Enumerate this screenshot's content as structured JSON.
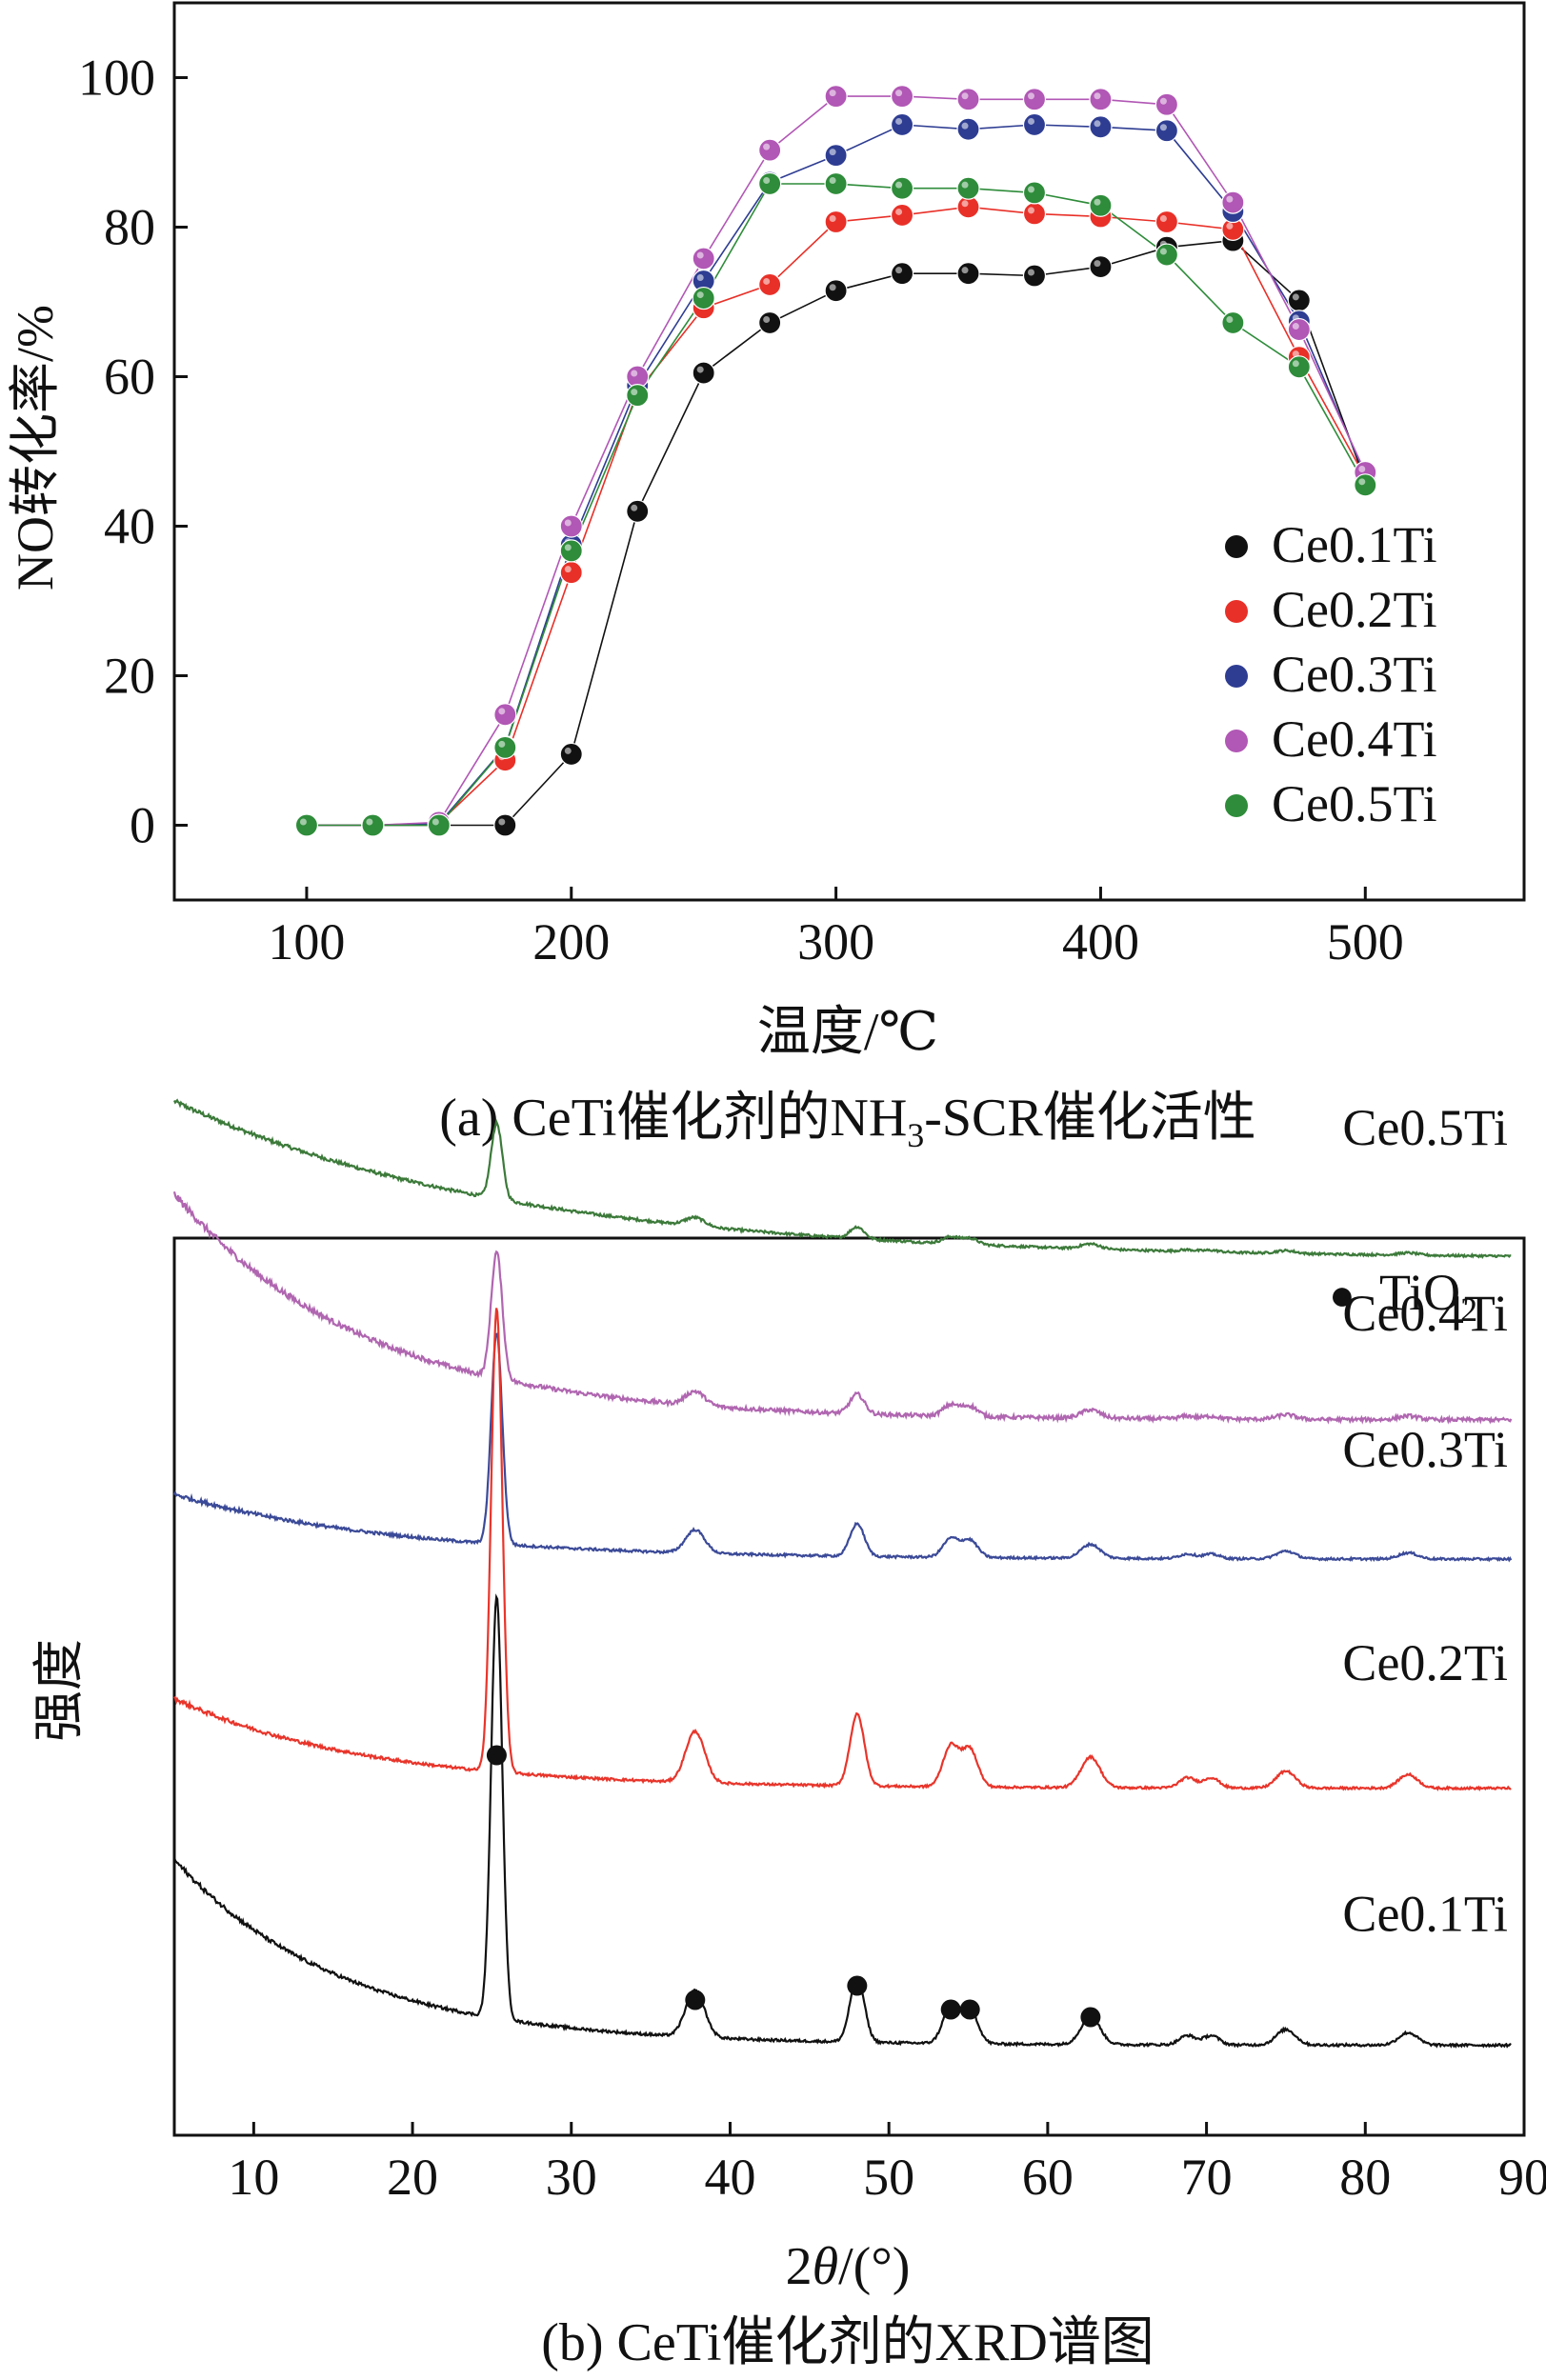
{
  "chart_data": [
    {
      "type": "scatter",
      "caption": "(a) CeTi催化剂的NH",
      "caption_sub": "3",
      "caption_tail": "-SCR催化活性",
      "xlabel": "温度/℃",
      "ylabel": "NO转化率/%",
      "xlim": [
        50,
        560
      ],
      "ylim": [
        -10,
        110
      ],
      "xticks": [
        100,
        200,
        300,
        400,
        500
      ],
      "yticks": [
        0,
        20,
        40,
        60,
        80,
        100
      ],
      "grid": false,
      "legend_position": "bottom-right",
      "x": [
        100,
        125,
        150,
        175,
        200,
        225,
        250,
        275,
        300,
        325,
        350,
        375,
        400,
        425,
        450,
        475,
        500
      ],
      "series": [
        {
          "name": "Ce0.1Ti",
          "color": "#111111",
          "values": [
            0,
            0,
            0,
            0,
            9.5,
            42,
            60.5,
            67.2,
            71.5,
            73.8,
            73.8,
            73.5,
            74.7,
            77.3,
            78.2,
            70.2,
            46
          ]
        },
        {
          "name": "Ce0.2Ti",
          "color": "#e83028",
          "values": [
            0,
            0,
            0.3,
            8.7,
            33.8,
            58,
            69.2,
            72.3,
            80.7,
            81.6,
            82.7,
            81.8,
            81.4,
            80.7,
            79.7,
            62.6,
            46.5
          ]
        },
        {
          "name": "Ce0.3Ti",
          "color": "#2e3d92",
          "values": [
            0,
            0,
            0.2,
            10.5,
            37.5,
            58.8,
            72.8,
            86,
            89.6,
            93.7,
            93.1,
            93.7,
            93.4,
            92.9,
            82.1,
            67.4,
            46.8
          ]
        },
        {
          "name": "Ce0.4Ti",
          "color": "#b157b5",
          "values": [
            0,
            0,
            0.4,
            14.8,
            40,
            60,
            75.8,
            90.3,
            97.5,
            97.5,
            97.1,
            97.1,
            97.1,
            96.4,
            83.3,
            66.3,
            47.2
          ]
        },
        {
          "name": "Ce0.5Ti",
          "color": "#2e8c3a",
          "values": [
            0,
            0,
            0,
            10.4,
            36.7,
            57.5,
            70.5,
            85.8,
            85.8,
            85.2,
            85.2,
            84.6,
            82.9,
            76.3,
            67.2,
            61.3,
            45.5
          ]
        }
      ]
    },
    {
      "type": "line",
      "caption": "(b) CeTi催化剂的XRD谱图",
      "xlabel_prefix": "2",
      "xlabel_theta": "θ",
      "xlabel_suffix": "/(°)",
      "ylabel": "强度",
      "xlim": [
        5,
        90
      ],
      "xticks": [
        10,
        20,
        30,
        40,
        50,
        60,
        70,
        80,
        90
      ],
      "y_ticks_shown": false,
      "legend": {
        "marker": "●",
        "label": "TiO",
        "label_sub": "2"
      },
      "tio2_peaks_2theta": [
        25.3,
        37.8,
        48.0,
        53.9,
        55.1,
        62.7
      ],
      "series": [
        {
          "name": "Ce0.5Ti",
          "color": "#3c7a3a",
          "base_start": 3.7,
          "base_end": 1.15,
          "decay": 4,
          "noise": 0.035,
          "baseline_offset": 12.05,
          "peak_scale": 0.18
        },
        {
          "name": "Ce0.4Ti",
          "color": "#b066b0",
          "base_start": 4.6,
          "base_end": 0.95,
          "decay": 7,
          "noise": 0.06,
          "baseline_offset": 9.65,
          "peak_scale": 0.3
        },
        {
          "name": "Ce0.3Ti",
          "color": "#3b4a98",
          "base_start": 1.4,
          "base_end": 0.35,
          "decay": 6,
          "noise": 0.035,
          "baseline_offset": 8.0,
          "peak_scale": 0.5
        },
        {
          "name": "Ce0.2Ti",
          "color": "#e8352b",
          "base_start": 1.8,
          "base_end": 0.35,
          "decay": 7,
          "noise": 0.035,
          "baseline_offset": 4.3,
          "peak_scale": 1.1
        },
        {
          "name": "Ce0.1Ti",
          "color": "#111111",
          "base_start": 3.5,
          "base_end": 0.5,
          "decay": 8,
          "noise": 0.04,
          "baseline_offset": 0,
          "peak_scale": 1.0
        }
      ],
      "peaks_ce01": [
        {
          "pos": 25.3,
          "height": 6.8,
          "width": 0.35
        },
        {
          "pos": 37.8,
          "height": 0.75,
          "width": 0.6
        },
        {
          "pos": 48.0,
          "height": 1.05,
          "width": 0.45
        },
        {
          "pos": 53.9,
          "height": 0.6,
          "width": 0.5
        },
        {
          "pos": 55.1,
          "height": 0.55,
          "width": 0.5
        },
        {
          "pos": 62.7,
          "height": 0.45,
          "width": 0.6
        },
        {
          "pos": 68.8,
          "height": 0.15,
          "width": 0.5
        },
        {
          "pos": 70.3,
          "height": 0.15,
          "width": 0.5
        },
        {
          "pos": 75.0,
          "height": 0.25,
          "width": 0.6
        },
        {
          "pos": 82.7,
          "height": 0.2,
          "width": 0.6
        }
      ]
    }
  ]
}
